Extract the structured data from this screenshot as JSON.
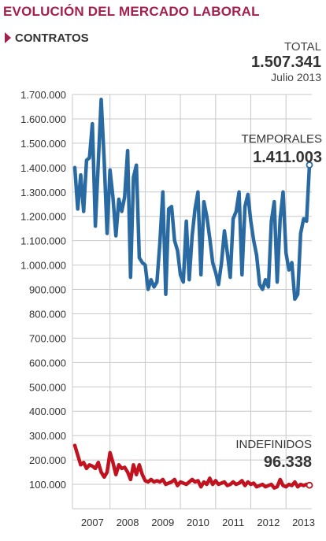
{
  "header": {
    "title": "EVOLUCIÓN DEL MERCADO LABORAL",
    "subtitle": "CONTRATOS"
  },
  "total": {
    "label": "TOTAL",
    "value": "1.507.341",
    "date": "Julio 2013"
  },
  "annotations": {
    "temporales_label": "TEMPORALES",
    "temporales_value": "1.411.003",
    "indefinidos_label": "INDEFINIDOS",
    "indefinidos_value": "96.338"
  },
  "colors": {
    "title": "#a51f4e",
    "temporales": "#2a6aa3",
    "indefinidos": "#c1121f",
    "grid": "#c8c8c8"
  },
  "chart_data": {
    "type": "line",
    "x_start": "2007-01",
    "x_end": "2013-07",
    "x_tick_labels": [
      "2007",
      "2008",
      "2009",
      "2010",
      "2011",
      "2012",
      "2013"
    ],
    "y_tick_labels": [
      "100.000",
      "200.000",
      "300.000",
      "400.000",
      "500.000",
      "600.000",
      "700.000",
      "800.000",
      "900.000",
      "1.000.000",
      "1.100.000",
      "1.200.000",
      "1.300.000",
      "1.400.000",
      "1.500.000",
      "1.600.000",
      "1.700.000"
    ],
    "ylim": [
      0,
      1700000
    ],
    "grid": true,
    "series": [
      {
        "name": "TEMPORALES",
        "color": "#2a6aa3",
        "values": [
          1400000,
          1230000,
          1370000,
          1220000,
          1430000,
          1440000,
          1580000,
          1160000,
          1420000,
          1680000,
          1430000,
          1130000,
          1390000,
          1280000,
          1120000,
          1270000,
          1220000,
          1280000,
          1470000,
          950000,
          1360000,
          1410000,
          1030000,
          1010000,
          1000000,
          900000,
          940000,
          910000,
          930000,
          1090000,
          1300000,
          880000,
          1230000,
          1240000,
          1100000,
          1060000,
          960000,
          930000,
          1180000,
          940000,
          1120000,
          1230000,
          1300000,
          960000,
          1260000,
          1200000,
          1110000,
          1010000,
          970000,
          920000,
          1010000,
          1140000,
          1050000,
          950000,
          1190000,
          1220000,
          1300000,
          960000,
          1240000,
          1290000,
          1180000,
          1100000,
          1040000,
          920000,
          900000,
          940000,
          910000,
          1180000,
          1260000,
          930000,
          1190000,
          1300000,
          1050000,
          980000,
          1010000,
          860000,
          880000,
          1130000,
          1190000,
          1180000,
          1411003
        ],
        "annotation": "TEMPORALES 1.411.003"
      },
      {
        "name": "INDEFINIDOS",
        "color": "#c1121f",
        "values": [
          260000,
          220000,
          180000,
          190000,
          165000,
          180000,
          175000,
          165000,
          190000,
          150000,
          130000,
          150000,
          230000,
          190000,
          140000,
          180000,
          165000,
          170000,
          150000,
          120000,
          180000,
          140000,
          180000,
          140000,
          115000,
          110000,
          120000,
          110000,
          115000,
          110000,
          120000,
          100000,
          105000,
          110000,
          120000,
          95000,
          110000,
          105000,
          100000,
          110000,
          120000,
          110000,
          115000,
          90000,
          110000,
          100000,
          125000,
          100000,
          115000,
          100000,
          105000,
          110000,
          95000,
          100000,
          110000,
          100000,
          105000,
          115000,
          95000,
          110000,
          100000,
          105000,
          90000,
          95000,
          100000,
          90000,
          95000,
          100000,
          85000,
          90000,
          120000,
          95000,
          90000,
          100000,
          95000,
          110000,
          90000,
          100000,
          95000,
          100000,
          96338
        ],
        "annotation": "INDEFINIDOS 96.338"
      }
    ]
  }
}
